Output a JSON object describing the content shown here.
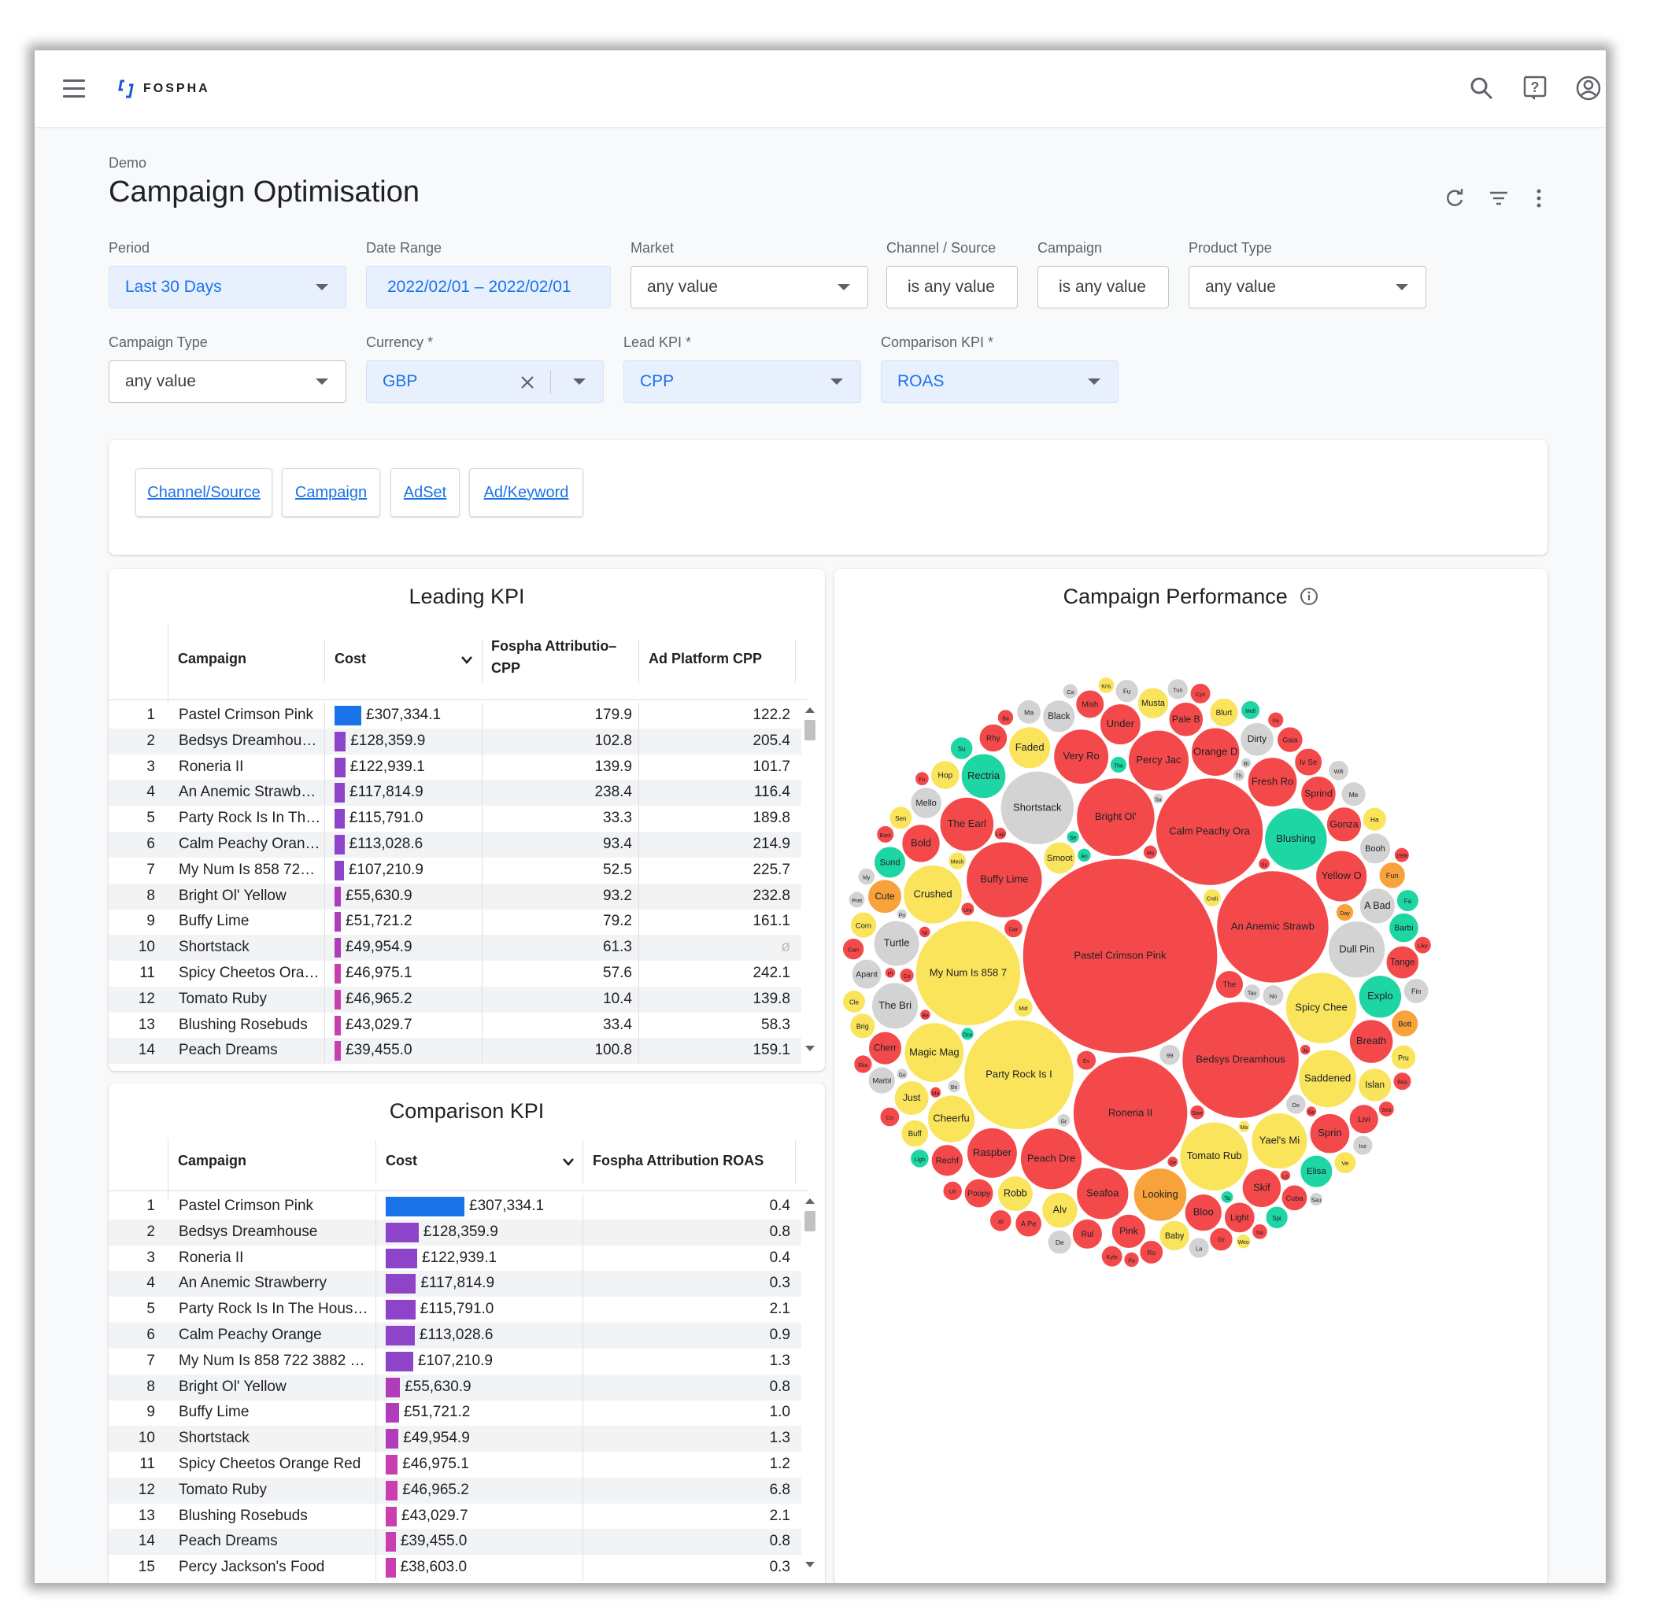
{
  "app": {
    "brand": "FOSPHA"
  },
  "page": {
    "breadcrumb": "Demo",
    "title": "Campaign Optimisation"
  },
  "filters": {
    "row1": [
      {
        "label": "Period",
        "value": "Last 30 Days"
      },
      {
        "label": "Date Range",
        "value": "2022/02/01 – 2022/02/01"
      },
      {
        "label": "Market",
        "value": "any value"
      },
      {
        "label": "Channel / Source",
        "value": "is any value"
      },
      {
        "label": "Campaign",
        "value": "is any value"
      },
      {
        "label": "Product Type",
        "value": "any value"
      }
    ],
    "row2": [
      {
        "label": "Campaign Type",
        "value": "any value"
      },
      {
        "label": "Currency *",
        "value": "GBP"
      },
      {
        "label": "Lead KPI *",
        "value": "CPP"
      },
      {
        "label": "Comparison KPI *",
        "value": "ROAS"
      }
    ]
  },
  "tabs": [
    "Channel/Source",
    "Campaign",
    "AdSet",
    "Ad/Keyword"
  ],
  "leading": {
    "title": "Leading KPI",
    "headers": {
      "campaign": "Campaign",
      "cost": "Cost",
      "attr": "Fospha Attributio–",
      "attr2": "CPP",
      "ad": "Ad Platform CPP"
    },
    "rows": [
      {
        "n": "1",
        "name": "Pastel Crimson Pink",
        "cost": "£307,334.1",
        "attr": "179.9",
        "ad": "122.2"
      },
      {
        "n": "2",
        "name": "Bedsys Dreamhou…",
        "cost": "£128,359.9",
        "attr": "102.8",
        "ad": "205.4"
      },
      {
        "n": "3",
        "name": "Roneria II",
        "cost": "£122,939.1",
        "attr": "139.9",
        "ad": "101.7"
      },
      {
        "n": "4",
        "name": "An Anemic Strawb…",
        "cost": "£117,814.9",
        "attr": "238.4",
        "ad": "116.4"
      },
      {
        "n": "5",
        "name": "Party Rock Is In Th…",
        "cost": "£115,791.0",
        "attr": "33.3",
        "ad": "189.8"
      },
      {
        "n": "6",
        "name": "Calm Peachy Oran…",
        "cost": "£113,028.6",
        "attr": "93.4",
        "ad": "214.9"
      },
      {
        "n": "7",
        "name": "My Num Is 858 72…",
        "cost": "£107,210.9",
        "attr": "52.5",
        "ad": "225.7"
      },
      {
        "n": "8",
        "name": "Bright Ol' Yellow",
        "cost": "£55,630.9",
        "attr": "93.2",
        "ad": "232.8"
      },
      {
        "n": "9",
        "name": "Buffy Lime",
        "cost": "£51,721.2",
        "attr": "79.2",
        "ad": "161.1"
      },
      {
        "n": "10",
        "name": "Shortstack",
        "cost": "£49,954.9",
        "attr": "61.3",
        "ad": "ø"
      },
      {
        "n": "11",
        "name": "Spicy Cheetos Ora…",
        "cost": "£46,975.1",
        "attr": "57.6",
        "ad": "242.1"
      },
      {
        "n": "12",
        "name": "Tomato Ruby",
        "cost": "£46,965.2",
        "attr": "10.4",
        "ad": "139.8"
      },
      {
        "n": "13",
        "name": "Blushing Rosebuds",
        "cost": "£43,029.7",
        "attr": "33.4",
        "ad": "58.3"
      },
      {
        "n": "14",
        "name": "Peach Dreams",
        "cost": "£39,455.0",
        "attr": "100.8",
        "ad": "159.1"
      }
    ]
  },
  "comparison": {
    "title": "Comparison KPI",
    "headers": {
      "campaign": "Campaign",
      "cost": "Cost",
      "attr": "Fospha Attribution ROAS"
    },
    "rows": [
      {
        "n": "1",
        "name": "Pastel Crimson Pink",
        "cost": "£307,334.1",
        "attr": "0.4"
      },
      {
        "n": "2",
        "name": "Bedsys Dreamhouse",
        "cost": "£128,359.9",
        "attr": "0.8"
      },
      {
        "n": "3",
        "name": "Roneria II",
        "cost": "£122,939.1",
        "attr": "0.4"
      },
      {
        "n": "4",
        "name": "An Anemic Strawberry",
        "cost": "£117,814.9",
        "attr": "0.3"
      },
      {
        "n": "5",
        "name": "Party Rock Is In The Hous…",
        "cost": "£115,791.0",
        "attr": "2.1"
      },
      {
        "n": "6",
        "name": "Calm Peachy Orange",
        "cost": "£113,028.6",
        "attr": "0.9"
      },
      {
        "n": "7",
        "name": "My Num Is 858 722 3882 …",
        "cost": "£107,210.9",
        "attr": "1.3"
      },
      {
        "n": "8",
        "name": "Bright Ol' Yellow",
        "cost": "£55,630.9",
        "attr": "0.8"
      },
      {
        "n": "9",
        "name": "Buffy Lime",
        "cost": "£51,721.2",
        "attr": "1.0"
      },
      {
        "n": "10",
        "name": "Shortstack",
        "cost": "£49,954.9",
        "attr": "1.3"
      },
      {
        "n": "11",
        "name": "Spicy Cheetos Orange Red",
        "cost": "£46,975.1",
        "attr": "1.2"
      },
      {
        "n": "12",
        "name": "Tomato Ruby",
        "cost": "£46,965.2",
        "attr": "6.8"
      },
      {
        "n": "13",
        "name": "Blushing Rosebuds",
        "cost": "£43,029.7",
        "attr": "2.1"
      },
      {
        "n": "14",
        "name": "Peach Dreams",
        "cost": "£39,455.0",
        "attr": "0.8"
      },
      {
        "n": "15",
        "name": "Percy Jackson's Food",
        "cost": "£38,603.0",
        "attr": "0.3"
      }
    ]
  },
  "performance": {
    "title": "Campaign Performance",
    "info_icon": "info-icon"
  },
  "colors": {
    "red": "#f4494b",
    "yellow": "#f9e45b",
    "teal": "#1dd6a3",
    "grey": "#d3d3d3",
    "orange": "#f7a23b",
    "blue": "#1a73e8",
    "bar_purple_1": "#8e44c9",
    "bar_purple_2": "#b03bbb",
    "bar_purple_3": "#c93fb0"
  },
  "chart_data": {
    "type": "bubble",
    "cost_values": [
      307334.1,
      128359.9,
      122939.1,
      117814.9,
      115791.0,
      113028.6,
      107210.9,
      55630.9,
      51721.2,
      49954.9,
      46975.1,
      46965.2,
      43029.7,
      39455.0,
      38603.0
    ],
    "bubbles": [
      {
        "label": "Pastel Crimson Pink",
        "color": "red"
      },
      {
        "label": "Bedsys Dreamhous",
        "color": "red"
      },
      {
        "label": "Roneria II",
        "color": "red"
      },
      {
        "label": "An Anemic Strawb",
        "color": "red"
      },
      {
        "label": "Party Rock Is I",
        "color": "yellow"
      },
      {
        "label": "Calm Peachy Ora",
        "color": "red"
      },
      {
        "label": "My Num Is 858 7",
        "color": "yellow"
      },
      {
        "label": "Bright Ol'",
        "color": "red"
      },
      {
        "label": "Buffy Lime",
        "color": "red"
      },
      {
        "label": "Shortstack",
        "color": "grey"
      },
      {
        "label": "Spicy Chee",
        "color": "yellow"
      },
      {
        "label": "Tomato Rub",
        "color": "yellow"
      },
      {
        "label": "Blushing",
        "color": "teal"
      },
      {
        "label": "Peach Dre",
        "color": "red"
      },
      {
        "label": "Percy Jac",
        "color": "red"
      },
      {
        "label": "Magic Mag",
        "color": "yellow"
      },
      {
        "label": "Crushed",
        "color": "yellow"
      },
      {
        "label": "Saddened",
        "color": "yellow"
      },
      {
        "label": "Dull Pin",
        "color": "grey"
      },
      {
        "label": "Yael's Mi",
        "color": "yellow"
      },
      {
        "label": "Very Ro",
        "color": "red"
      },
      {
        "label": "The Earl",
        "color": "red"
      },
      {
        "label": "Looking",
        "color": "orange"
      },
      {
        "label": "Seafoa",
        "color": "red"
      },
      {
        "label": "Yellow Or",
        "color": "red"
      },
      {
        "label": "Raspber",
        "color": "red"
      },
      {
        "label": "Fresh Ro",
        "color": "red"
      },
      {
        "label": "Orange D",
        "color": "red"
      },
      {
        "label": "Cheerful",
        "color": "yellow"
      },
      {
        "label": "The Brig",
        "color": "grey"
      },
      {
        "label": "Turtle",
        "color": "grey"
      },
      {
        "label": "Rectria",
        "color": "teal"
      },
      {
        "label": "Breath",
        "color": "red"
      },
      {
        "label": "Explo",
        "color": "teal"
      },
      {
        "label": "Faded C",
        "color": "yellow"
      },
      {
        "label": "Under",
        "color": "red"
      },
      {
        "label": "Sprin",
        "color": "red"
      },
      {
        "label": "Skif",
        "color": "red"
      },
      {
        "label": "Bold",
        "color": "red"
      },
      {
        "label": "Bloo",
        "color": "red"
      },
      {
        "label": "Alv",
        "color": "yellow"
      },
      {
        "label": "A Bad",
        "color": "grey"
      },
      {
        "label": "Robb",
        "color": "yellow"
      },
      {
        "label": "Sprind",
        "color": "red"
      },
      {
        "label": "Gonza",
        "color": "red"
      },
      {
        "label": "Just",
        "color": "yellow"
      },
      {
        "label": "Pale Br",
        "color": "red"
      },
      {
        "label": "Pink",
        "color": "red"
      },
      {
        "label": "Cute",
        "color": "orange"
      },
      {
        "label": "Dirty A",
        "color": "grey"
      },
      {
        "label": "Island",
        "color": "yellow"
      },
      {
        "label": "Cherry",
        "color": "red"
      },
      {
        "label": "Tangel",
        "color": "red"
      },
      {
        "label": "Black",
        "color": "grey"
      },
      {
        "label": "Elisas",
        "color": "teal"
      },
      {
        "label": "Smoot",
        "color": "yellow"
      },
      {
        "label": "Rechfe",
        "color": "red"
      },
      {
        "label": "Sund",
        "color": "teal"
      },
      {
        "label": "Mellowe",
        "color": "grey"
      },
      {
        "label": "Mustar",
        "color": "yellow"
      },
      {
        "label": "Booh",
        "color": "grey"
      },
      {
        "label": "Light",
        "color": "red"
      },
      {
        "label": "Baby",
        "color": "yellow"
      },
      {
        "label": "Rul",
        "color": "red"
      },
      {
        "label": "Apanth",
        "color": "grey"
      },
      {
        "label": "Barbie",
        "color": "teal"
      },
      {
        "label": "Livi",
        "color": "red"
      },
      {
        "label": "Poopy",
        "color": "red"
      },
      {
        "label": "Hop",
        "color": "yellow"
      },
      {
        "label": "Blurto",
        "color": "yellow"
      },
      {
        "label": "Mish",
        "color": "red"
      },
      {
        "label": "Rhy",
        "color": "red"
      },
      {
        "label": "The",
        "color": "red"
      },
      {
        "label": "Iv See",
        "color": "red"
      },
      {
        "label": "Buff",
        "color": "yellow"
      },
      {
        "label": "Marble",
        "color": "grey"
      },
      {
        "label": "Bott",
        "color": "orange"
      },
      {
        "label": "A Pe",
        "color": "red"
      },
      {
        "label": "Fun",
        "color": "orange"
      },
      {
        "label": "Corn",
        "color": "yellow"
      },
      {
        "label": "Cuba W",
        "color": "red"
      },
      {
        "label": "Gaia",
        "color": "red"
      },
      {
        "label": "Brig",
        "color": "yellow"
      },
      {
        "label": "Fin",
        "color": "grey"
      },
      {
        "label": "Pru",
        "color": "yellow"
      },
      {
        "label": "Me",
        "color": "grey"
      },
      {
        "label": "Ma",
        "color": "grey"
      },
      {
        "label": "De",
        "color": "grey"
      },
      {
        "label": "Ha",
        "color": "yellow"
      },
      {
        "label": "Ro",
        "color": "red"
      },
      {
        "label": "Gr",
        "color": "red"
      },
      {
        "label": "Fu",
        "color": "grey"
      },
      {
        "label": "Sen",
        "color": "yellow"
      },
      {
        "label": "Cle",
        "color": "yellow"
      },
      {
        "label": "Su",
        "color": "teal"
      },
      {
        "label": "Spi",
        "color": "teal"
      },
      {
        "label": "Fa",
        "color": "teal"
      },
      {
        "label": "Ve",
        "color": "yellow"
      },
      {
        "label": "Al",
        "color": "red"
      },
      {
        "label": "Can",
        "color": "red"
      },
      {
        "label": "No",
        "color": "grey"
      },
      {
        "label": "Kyle",
        "color": "red"
      },
      {
        "label": "99",
        "color": "grey"
      },
      {
        "label": "Tun",
        "color": "grey"
      },
      {
        "label": "La",
        "color": "grey"
      },
      {
        "label": "Cyn",
        "color": "red"
      },
      {
        "label": "Wifi",
        "color": "grey"
      },
      {
        "label": "Do",
        "color": "grey"
      },
      {
        "label": "Ice",
        "color": "grey"
      },
      {
        "label": "Ev",
        "color": "red"
      },
      {
        "label": "Co",
        "color": "red"
      },
      {
        "label": "Ult",
        "color": "red"
      },
      {
        "label": "Mid",
        "color": "yellow"
      },
      {
        "label": "Mell",
        "color": "teal"
      },
      {
        "label": "Dar",
        "color": "red"
      },
      {
        "label": "Ligh",
        "color": "teal"
      },
      {
        "label": "Eka",
        "color": "red"
      },
      {
        "label": "Bea",
        "color": "red"
      },
      {
        "label": "Creli",
        "color": "yellow"
      },
      {
        "label": "Mecko",
        "color": "yellow"
      },
      {
        "label": "Day",
        "color": "orange"
      },
      {
        "label": "Bark",
        "color": "red"
      },
      {
        "label": "Like",
        "color": "red"
      },
      {
        "label": "My",
        "color": "grey"
      },
      {
        "label": "Tau",
        "color": "grey"
      },
      {
        "label": "The Pi",
        "color": "teal"
      },
      {
        "label": "Pret",
        "color": "grey"
      },
      {
        "label": "Kris",
        "color": "yellow"
      },
      {
        "label": "Ba",
        "color": "red"
      },
      {
        "label": "Pe",
        "color": "red"
      },
      {
        "label": "Sea",
        "color": "red"
      },
      {
        "label": "Na",
        "color": "red"
      },
      {
        "label": "Pa",
        "color": "red"
      },
      {
        "label": "Ca",
        "color": "grey"
      },
      {
        "label": "1996",
        "color": "red"
      },
      {
        "label": "Swee",
        "color": "red"
      },
      {
        "label": "Weo",
        "color": "yellow"
      },
      {
        "label": "Co",
        "color": "red"
      },
      {
        "label": "Mo",
        "color": "red"
      },
      {
        "label": "Fu",
        "color": "red"
      },
      {
        "label": "An",
        "color": "teal"
      },
      {
        "label": "Sau",
        "color": "grey"
      },
      {
        "label": "Uni",
        "color": "red"
      },
      {
        "label": "Gr",
        "color": "grey"
      },
      {
        "label": "Be",
        "color": "grey"
      },
      {
        "label": "Ocea",
        "color": "teal"
      },
      {
        "label": "Se",
        "color": "teal"
      },
      {
        "label": "Ta",
        "color": "teal"
      },
      {
        "label": "Lap",
        "color": "red"
      },
      {
        "label": "Th",
        "color": "grey"
      },
      {
        "label": "Ma",
        "color": "yellow"
      },
      {
        "label": "Sc",
        "color": "red"
      },
      {
        "label": "Nic",
        "color": "red"
      },
      {
        "label": "Go",
        "color": "grey"
      },
      {
        "label": "Mar",
        "color": "red"
      },
      {
        "label": "De",
        "color": "red"
      },
      {
        "label": "Ber",
        "color": "red"
      },
      {
        "label": "Sa",
        "color": "grey"
      },
      {
        "label": "Ja",
        "color": "red"
      },
      {
        "label": "Bl",
        "color": "grey"
      },
      {
        "label": "Se",
        "color": "red"
      },
      {
        "label": "Lo",
        "color": "red"
      },
      {
        "label": "Po",
        "color": "grey"
      },
      {
        "label": "Pink",
        "color": "red"
      }
    ]
  }
}
